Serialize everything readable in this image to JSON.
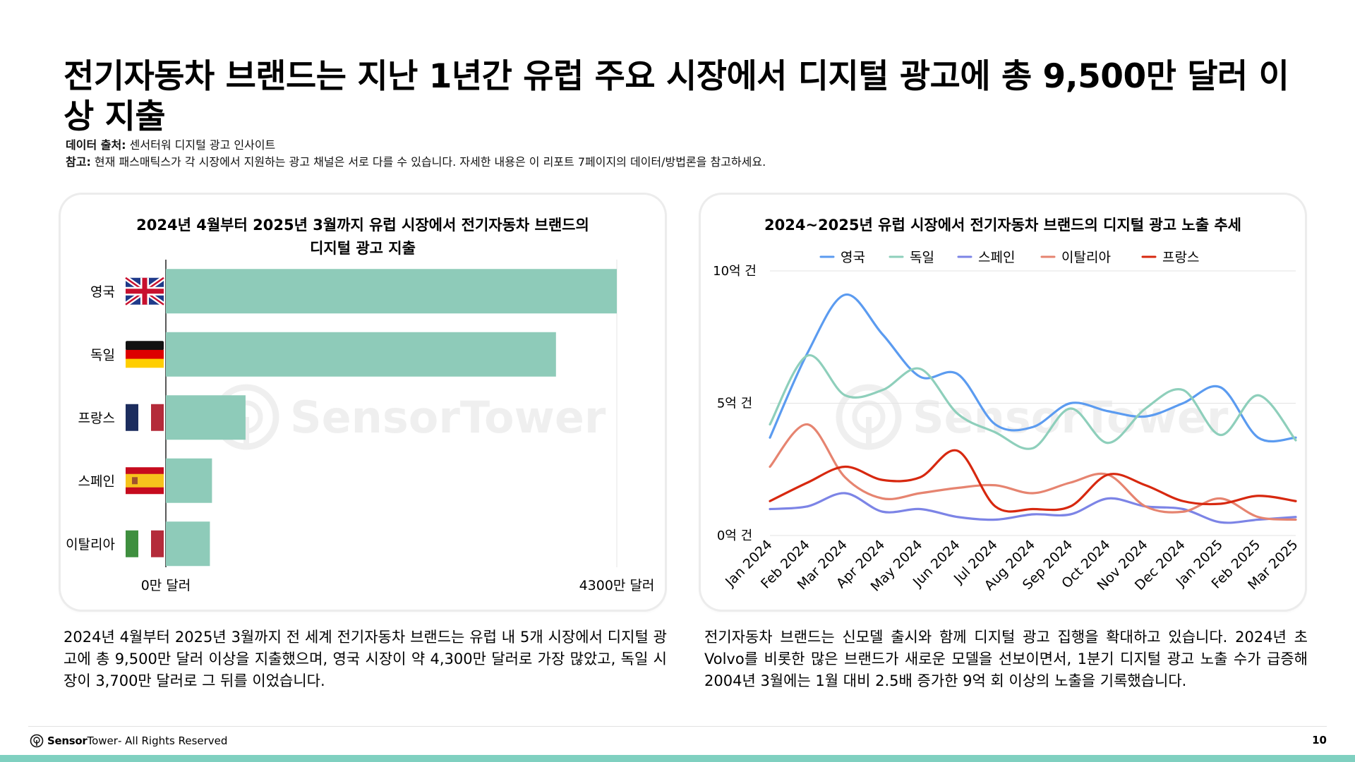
{
  "title": "전기자동차 브랜드는 지난 1년간 유럽 주요 시장에서 디지털 광고에 총 9,500만 달러 이상 지출",
  "source_label": "데이터 출처:",
  "source_text": " 센서터워 디지털 광고 인사이트",
  "note_label": "참고:",
  "note_text": " 현재 패스매틱스가 각 시장에서 지원하는 광고 채널은 서로 다를 수 있습니다. 자세한 내용은 이 리포트 7페이지의 데이터/방법론을 참고하세요.",
  "watermark": "SensorTower",
  "colors": {
    "bar": "#8ecbb9",
    "uk": "#5b9bf0",
    "de": "#8ecfbb",
    "es": "#7c84e6",
    "it": "#e68470",
    "fr": "#d7280f",
    "accent_bar": "#7fd0c0"
  },
  "left_chart": {
    "title_line1": "2024년 4월부터 2025년 3월까지 유럽 시장에서 전기자동차 브랜드의",
    "title_line2": "디지털 광고 지출",
    "x_min_label": "0만 달러",
    "x_max_label": "4300만 달러"
  },
  "right_chart": {
    "title": "2024~2025년 유럽 시장에서 전기자동차 브랜드의 디지털 광고 노출 추세",
    "y_labels": [
      "0억 건",
      "5억 건",
      "10억 건"
    ]
  },
  "chart_data": [
    {
      "type": "bar",
      "orientation": "horizontal",
      "title": "2024년 4월부터 2025년 3월까지 유럽 시장에서 전기자동차 브랜드의 디지털 광고 지출",
      "categories": [
        "영국",
        "독일",
        "프랑스",
        "스페인",
        "이탈리아"
      ],
      "flags": [
        "uk-flag-icon",
        "germany-flag-icon",
        "france-flag-icon",
        "spain-flag-icon",
        "italy-flag-icon"
      ],
      "values": [
        4300,
        3720,
        760,
        440,
        420
      ],
      "unit": "만 달러",
      "xlim": [
        0,
        4300
      ]
    },
    {
      "type": "line",
      "title": "2024~2025년 유럽 시장에서 전기자동차 브랜드의 디지털 광고 노출 추세",
      "x": [
        "Jan 2024",
        "Feb 2024",
        "Mar 2024",
        "Apr 2024",
        "May 2024",
        "Jun 2024",
        "Jul 2024",
        "Aug 2024",
        "Sep 2024",
        "Oct 2024",
        "Nov 2024",
        "Dec 2024",
        "Jan 2025",
        "Feb 2025",
        "Mar 2025"
      ],
      "ylim": [
        0,
        10
      ],
      "y_unit": "억 건",
      "legend_position": "top",
      "grid": true,
      "series": [
        {
          "name": "영국",
          "color": "#5b9bf0",
          "values": [
            3.7,
            6.9,
            9.1,
            7.6,
            6.0,
            6.1,
            4.2,
            4.1,
            5.0,
            4.7,
            4.5,
            5.0,
            5.6,
            3.7,
            3.7
          ]
        },
        {
          "name": "독일",
          "color": "#8ecfbb",
          "values": [
            4.2,
            6.8,
            5.3,
            5.5,
            6.3,
            4.6,
            3.9,
            3.3,
            4.8,
            3.5,
            4.8,
            5.5,
            3.8,
            5.3,
            3.6
          ]
        },
        {
          "name": "스페인",
          "color": "#7c84e6",
          "values": [
            1.0,
            1.1,
            1.6,
            0.9,
            1.0,
            0.7,
            0.6,
            0.8,
            0.8,
            1.4,
            1.1,
            1.0,
            0.5,
            0.6,
            0.7
          ]
        },
        {
          "name": "이탈리아",
          "color": "#e68470",
          "values": [
            2.6,
            4.2,
            2.2,
            1.4,
            1.6,
            1.8,
            1.9,
            1.6,
            2.0,
            2.3,
            1.1,
            0.9,
            1.4,
            0.7,
            0.6
          ]
        },
        {
          "name": "프랑스",
          "color": "#d7280f",
          "values": [
            1.3,
            2.0,
            2.6,
            2.1,
            2.2,
            3.2,
            1.1,
            1.0,
            1.1,
            2.3,
            1.9,
            1.3,
            1.2,
            1.5,
            1.3
          ]
        }
      ]
    }
  ],
  "left_description": "2024년 4월부터 2025년 3월까지 전 세계 전기자동차 브랜드는 유럽 내 5개 시장에서 디지털 광고에 총 9,500만 달러 이상을 지출했으며, 영국 시장이 약 4,300만 달러로 가장 많았고, 독일 시장이 3,700만 달러로 그 뒤를 이었습니다.",
  "right_description": "전기자동차 브랜드는 신모델 출시와 함께 디지털 광고 집행을 확대하고 있습니다. 2024년 초 Volvo를 비롯한 많은 브랜드가 새로운 모델을 선보이면서, 1분기 디지털 광고 노출 수가 급증해 2004년 3월에는 1월 대비 2.5배 증가한 9억 회 이상의 노출을 기록했습니다.",
  "footer": {
    "brand_bold": "Sensor",
    "brand_light": "Tower",
    "rights": " - All Rights Reserved",
    "page": "10"
  }
}
